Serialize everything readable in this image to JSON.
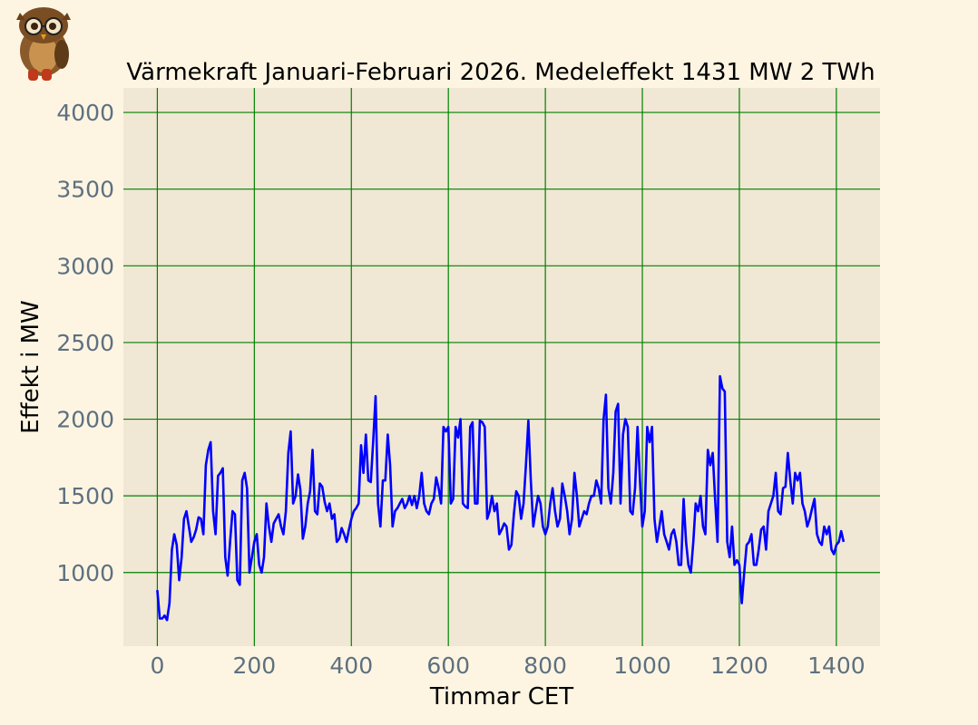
{
  "chart_data": {
    "type": "line",
    "title": "Värmekraft Januari-Februari 2026. Medeleffekt 1431 MW 2 TWh",
    "xlabel": "Timmar CET",
    "ylabel": "Effekt i MW",
    "xlim": [
      -70,
      1490
    ],
    "ylim": [
      520,
      4160
    ],
    "xticks": [
      0,
      200,
      400,
      600,
      800,
      1000,
      1200,
      1400
    ],
    "yticks": [
      1000,
      1500,
      2000,
      2500,
      3000,
      3500,
      4000
    ],
    "grid": true,
    "series": [
      {
        "color": "#0000ff",
        "x": [
          0,
          5,
          10,
          15,
          20,
          25,
          30,
          35,
          40,
          45,
          50,
          55,
          60,
          65,
          70,
          75,
          80,
          85,
          90,
          95,
          100,
          105,
          110,
          115,
          120,
          125,
          130,
          135,
          140,
          145,
          150,
          155,
          160,
          165,
          170,
          175,
          180,
          185,
          190,
          195,
          200,
          205,
          210,
          215,
          220,
          225,
          230,
          235,
          240,
          245,
          250,
          255,
          260,
          265,
          270,
          275,
          280,
          285,
          290,
          295,
          300,
          305,
          310,
          315,
          320,
          325,
          330,
          335,
          340,
          345,
          350,
          355,
          360,
          365,
          370,
          375,
          380,
          385,
          390,
          395,
          400,
          405,
          410,
          415,
          420,
          425,
          430,
          435,
          440,
          445,
          450,
          455,
          460,
          465,
          470,
          475,
          480,
          485,
          490,
          495,
          500,
          505,
          510,
          515,
          520,
          525,
          530,
          535,
          540,
          545,
          550,
          555,
          560,
          565,
          570,
          575,
          580,
          585,
          590,
          595,
          600,
          605,
          610,
          615,
          620,
          625,
          630,
          635,
          640,
          645,
          650,
          655,
          660,
          665,
          670,
          675,
          680,
          685,
          690,
          695,
          700,
          705,
          710,
          715,
          720,
          725,
          730,
          735,
          740,
          745,
          750,
          755,
          760,
          765,
          770,
          775,
          780,
          785,
          790,
          795,
          800,
          805,
          810,
          815,
          820,
          825,
          830,
          835,
          840,
          845,
          850,
          855,
          860,
          865,
          870,
          875,
          880,
          885,
          890,
          895,
          900,
          905,
          910,
          915,
          920,
          925,
          930,
          935,
          940,
          945,
          950,
          955,
          960,
          965,
          970,
          975,
          980,
          985,
          990,
          995,
          1000,
          1005,
          1010,
          1015,
          1020,
          1025,
          1030,
          1035,
          1040,
          1045,
          1050,
          1055,
          1060,
          1065,
          1070,
          1075,
          1080,
          1085,
          1090,
          1095,
          1100,
          1105,
          1110,
          1115,
          1120,
          1125,
          1130,
          1135,
          1140,
          1145,
          1150,
          1155,
          1160,
          1165,
          1170,
          1175,
          1180,
          1185,
          1190,
          1195,
          1200,
          1205,
          1210,
          1215,
          1220,
          1225,
          1230,
          1235,
          1240,
          1245,
          1250,
          1255,
          1260,
          1265,
          1270,
          1275,
          1280,
          1285,
          1290,
          1295,
          1300,
          1305,
          1310,
          1315,
          1320,
          1325,
          1330,
          1335,
          1340,
          1345,
          1350,
          1355,
          1360,
          1365,
          1370,
          1375,
          1380,
          1385,
          1390,
          1395,
          1400,
          1405,
          1410,
          1415
        ],
        "y": [
          885,
          700,
          700,
          720,
          690,
          800,
          1150,
          1250,
          1180,
          950,
          1100,
          1350,
          1400,
          1300,
          1200,
          1230,
          1280,
          1360,
          1350,
          1250,
          1700,
          1800,
          1850,
          1400,
          1250,
          1630,
          1650,
          1680,
          1100,
          980,
          1200,
          1400,
          1380,
          950,
          920,
          1600,
          1650,
          1550,
          1000,
          1100,
          1200,
          1250,
          1050,
          1000,
          1100,
          1450,
          1300,
          1200,
          1320,
          1350,
          1380,
          1300,
          1250,
          1400,
          1780,
          1920,
          1450,
          1500,
          1640,
          1540,
          1220,
          1300,
          1450,
          1530,
          1800,
          1400,
          1380,
          1580,
          1560,
          1460,
          1400,
          1450,
          1350,
          1380,
          1200,
          1220,
          1290,
          1250,
          1200,
          1280,
          1350,
          1400,
          1420,
          1450,
          1830,
          1650,
          1900,
          1600,
          1590,
          1850,
          2150,
          1450,
          1300,
          1600,
          1600,
          1900,
          1700,
          1300,
          1400,
          1420,
          1450,
          1480,
          1420,
          1450,
          1500,
          1440,
          1500,
          1420,
          1500,
          1650,
          1450,
          1400,
          1380,
          1450,
          1480,
          1620,
          1550,
          1450,
          1950,
          1920,
          1950,
          1450,
          1480,
          1950,
          1880,
          2000,
          1450,
          1430,
          1420,
          1950,
          1980,
          1450,
          1450,
          1990,
          1980,
          1950,
          1350,
          1400,
          1500,
          1400,
          1450,
          1250,
          1280,
          1320,
          1300,
          1150,
          1180,
          1380,
          1530,
          1500,
          1350,
          1450,
          1700,
          1990,
          1600,
          1300,
          1400,
          1500,
          1450,
          1300,
          1250,
          1300,
          1450,
          1550,
          1400,
          1300,
          1350,
          1580,
          1500,
          1400,
          1250,
          1350,
          1650,
          1500,
          1300,
          1350,
          1400,
          1380,
          1450,
          1500,
          1500,
          1600,
          1550,
          1450,
          2000,
          2160,
          1550,
          1450,
          1650,
          2050,
          2100,
          1450,
          1900,
          2000,
          1950,
          1400,
          1380,
          1550,
          1950,
          1600,
          1300,
          1400,
          1950,
          1850,
          1950,
          1350,
          1200,
          1300,
          1400,
          1250,
          1200,
          1150,
          1250,
          1280,
          1200,
          1050,
          1050,
          1480,
          1200,
          1050,
          1000,
          1200,
          1450,
          1400,
          1500,
          1300,
          1250,
          1800,
          1700,
          1780,
          1480,
          1200,
          2280,
          2200,
          2180,
          1200,
          1100,
          1300,
          1050,
          1080,
          1050,
          800,
          1000,
          1180,
          1200,
          1250,
          1050,
          1050,
          1150,
          1280,
          1300,
          1150,
          1400,
          1450,
          1500,
          1650,
          1400,
          1380,
          1550,
          1560,
          1780,
          1600,
          1450,
          1650,
          1600,
          1650,
          1450,
          1400,
          1300,
          1350,
          1420,
          1480,
          1250,
          1200,
          1180,
          1300,
          1250,
          1300,
          1150,
          1120,
          1180,
          1200,
          1270,
          1200
        ]
      }
    ]
  }
}
